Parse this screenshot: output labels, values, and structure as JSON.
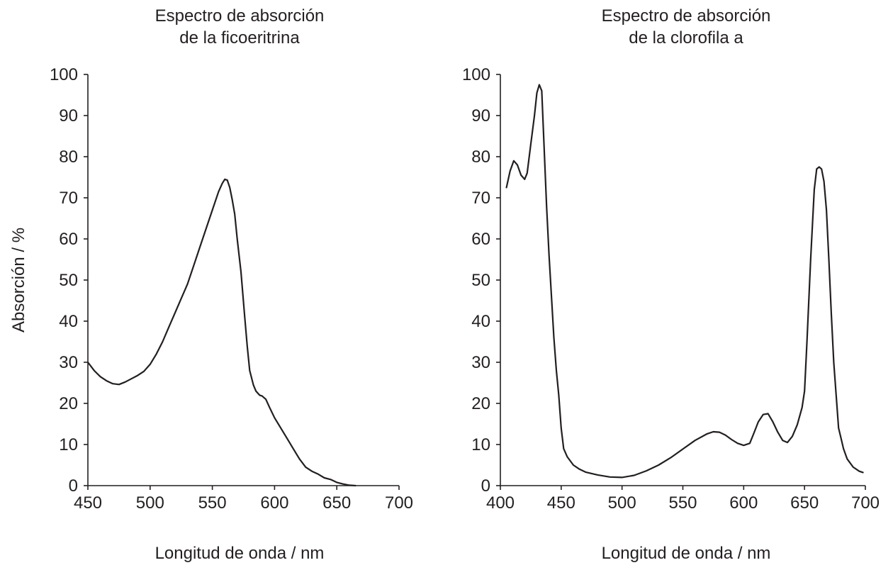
{
  "chart_data": [
    {
      "type": "line",
      "title": [
        "Espectro de absorción",
        "de la ficoeritrina"
      ],
      "xlabel": "Longitud de onda / nm",
      "ylabel": "Absorción / %",
      "xlim": [
        450,
        700
      ],
      "ylim": [
        0,
        100
      ],
      "x_ticks": [
        "450",
        "500",
        "550",
        "600",
        "650",
        "700"
      ],
      "y_ticks": [
        "0",
        "10",
        "20",
        "30",
        "40",
        "50",
        "60",
        "70",
        "80",
        "90",
        "100"
      ],
      "grid": false,
      "series": [
        {
          "x": [
            450,
            455,
            460,
            465,
            470,
            475,
            480,
            485,
            490,
            495,
            500,
            505,
            510,
            515,
            520,
            525,
            530,
            535,
            540,
            545,
            550,
            555,
            558,
            560,
            562,
            564,
            566,
            568,
            570,
            573,
            576,
            578,
            580,
            583,
            585,
            588,
            590,
            593,
            596,
            600,
            605,
            610,
            615,
            620,
            625,
            630,
            635,
            640,
            645,
            650,
            655,
            660,
            665
          ],
          "y": [
            30,
            28,
            26.5,
            25.5,
            24.8,
            24.6,
            25.2,
            26,
            26.8,
            27.8,
            29.5,
            32,
            35,
            38.5,
            42,
            45.5,
            49,
            53.5,
            58,
            62.5,
            67,
            71.5,
            73.5,
            74.5,
            74.3,
            72.5,
            69.5,
            66,
            60,
            52,
            41,
            34,
            28,
            24.5,
            23,
            22,
            21.8,
            21,
            19,
            16.5,
            14,
            11.5,
            9,
            6.5,
            4.5,
            3.5,
            2.8,
            1.9,
            1.5,
            0.8,
            0.4,
            0.1,
            0
          ]
        }
      ]
    },
    {
      "type": "line",
      "title": [
        "Espectro de absorción",
        "de la clorofila a"
      ],
      "xlabel": "Longitud de onda / nm",
      "ylabel": "Absorción / %",
      "xlim": [
        400,
        700
      ],
      "ylim": [
        0,
        100
      ],
      "x_ticks": [
        "400",
        "450",
        "500",
        "550",
        "600",
        "650",
        "700"
      ],
      "y_ticks": [
        "0",
        "10",
        "20",
        "30",
        "40",
        "50",
        "60",
        "70",
        "80",
        "90",
        "100"
      ],
      "grid": false,
      "series": [
        {
          "x": [
            405,
            408,
            411,
            414,
            417,
            420,
            422,
            425,
            428,
            430,
            432,
            434,
            436,
            438,
            440,
            442,
            444,
            446,
            448,
            450,
            452,
            455,
            460,
            465,
            470,
            480,
            490,
            500,
            510,
            520,
            530,
            540,
            550,
            560,
            570,
            575,
            580,
            585,
            590,
            595,
            600,
            605,
            608,
            612,
            616,
            620,
            624,
            628,
            632,
            636,
            640,
            644,
            648,
            650,
            652,
            655,
            658,
            660,
            662,
            664,
            666,
            668,
            670,
            672,
            674,
            676,
            678,
            680,
            682,
            685,
            690,
            695,
            698
          ],
          "y": [
            72.5,
            76.5,
            79,
            78,
            75.5,
            74.5,
            76,
            83,
            90,
            95.5,
            97.5,
            96,
            82,
            68,
            56,
            46,
            36,
            28,
            22,
            14,
            9,
            7,
            5,
            4,
            3.3,
            2.6,
            2.1,
            2,
            2.5,
            3.6,
            5,
            6.8,
            8.9,
            11,
            12.6,
            13.1,
            13,
            12.3,
            11.2,
            10.3,
            9.8,
            10.3,
            12.5,
            15.5,
            17.3,
            17.5,
            15.5,
            13,
            11,
            10.5,
            12,
            14.8,
            19,
            23,
            35,
            55,
            72,
            77,
            77.5,
            77,
            74,
            67,
            55,
            42,
            30,
            22,
            14,
            11.5,
            9,
            6.5,
            4.5,
            3.5,
            3.2
          ]
        }
      ]
    }
  ]
}
